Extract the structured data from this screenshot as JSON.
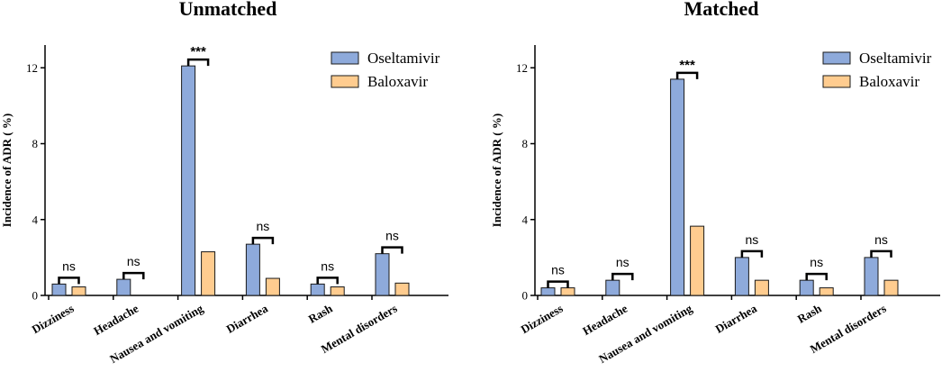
{
  "chart_data": [
    {
      "type": "bar",
      "title": "Unmatched",
      "ylabel": "Incidence of ADR ( %)",
      "xlabel": "",
      "ylim": [
        0,
        13.2
      ],
      "yticks": [
        0,
        4,
        8,
        12
      ],
      "categories": [
        "Dizziness",
        "Headache",
        "Nausea and vomiting",
        "Diarrhea",
        "Rash",
        "Mental disorders"
      ],
      "series": [
        {
          "name": "Oseltamivir",
          "color": "#8eaadb",
          "values": [
            0.6,
            0.85,
            12.1,
            2.7,
            0.6,
            2.2
          ]
        },
        {
          "name": "Baloxavir",
          "color": "#ffcc8f",
          "values": [
            0.45,
            0.0,
            2.3,
            0.9,
            0.45,
            0.65
          ]
        }
      ],
      "significance": [
        "ns",
        "ns",
        "***",
        "ns",
        "ns",
        "ns"
      ],
      "legend": "top-right"
    },
    {
      "type": "bar",
      "title": "Matched",
      "ylabel": "Incidence of ADR ( %)",
      "xlabel": "",
      "ylim": [
        0,
        13.2
      ],
      "yticks": [
        0,
        4,
        8,
        12
      ],
      "categories": [
        "Dizziness",
        "Headache",
        "Nausea and vomiting",
        "Diarrhea",
        "Rash",
        "Mental disorders"
      ],
      "series": [
        {
          "name": "Oseltamivir",
          "color": "#8eaadb",
          "values": [
            0.4,
            0.8,
            11.4,
            2.0,
            0.8,
            2.0
          ]
        },
        {
          "name": "Baloxavir",
          "color": "#ffcc8f",
          "values": [
            0.4,
            0.0,
            3.65,
            0.8,
            0.4,
            0.8
          ]
        }
      ],
      "significance": [
        "ns",
        "ns",
        "***",
        "ns",
        "ns",
        "ns"
      ],
      "legend": "top-right"
    }
  ]
}
